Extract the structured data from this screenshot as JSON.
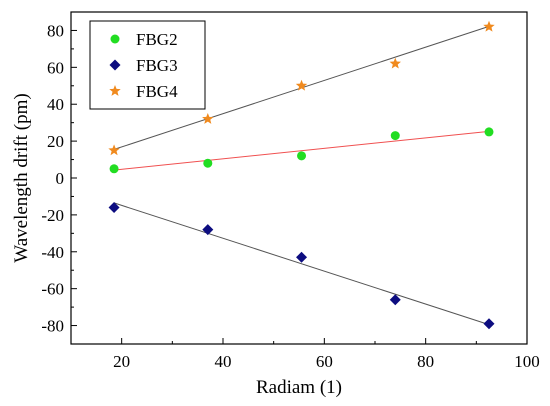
{
  "chart_data": {
    "type": "scatter",
    "xlabel": "Radiam (1)",
    "ylabel": "Wavelength drift (pm)",
    "xlim": [
      10,
      100
    ],
    "ylim": [
      -90,
      90
    ],
    "xticks": [
      20,
      40,
      60,
      80,
      100
    ],
    "yticks": [
      -80,
      -60,
      -40,
      -20,
      0,
      20,
      40,
      60,
      80
    ],
    "legend_position": "top-left",
    "grid": false,
    "series": [
      {
        "name": "FBG2",
        "marker": "circle",
        "color": "#22dd22",
        "fit_color": "#f05050",
        "x": [
          18.5,
          37.0,
          55.5,
          74.0,
          92.5
        ],
        "y": [
          5,
          8,
          12,
          23,
          25
        ],
        "fit": [
          [
            18.5,
            4.3
          ],
          [
            92.5,
            25.3
          ]
        ]
      },
      {
        "name": "FBG3",
        "marker": "diamond",
        "color": "#0d0d80",
        "fit_color": "#555555",
        "x": [
          18.5,
          37.0,
          55.5,
          74.0,
          92.5
        ],
        "y": [
          -16,
          -28,
          -43,
          -66,
          -79
        ],
        "fit": [
          [
            18.5,
            -13.5
          ],
          [
            92.5,
            -79.5
          ]
        ]
      },
      {
        "name": "FBG4",
        "marker": "star",
        "color": "#f08a1e",
        "fit_color": "#555555",
        "x": [
          18.5,
          37.0,
          55.5,
          74.0,
          92.5
        ],
        "y": [
          15,
          32,
          50,
          62,
          82
        ],
        "fit": [
          [
            18.5,
            15.5
          ],
          [
            92.5,
            82.2
          ]
        ]
      }
    ]
  }
}
